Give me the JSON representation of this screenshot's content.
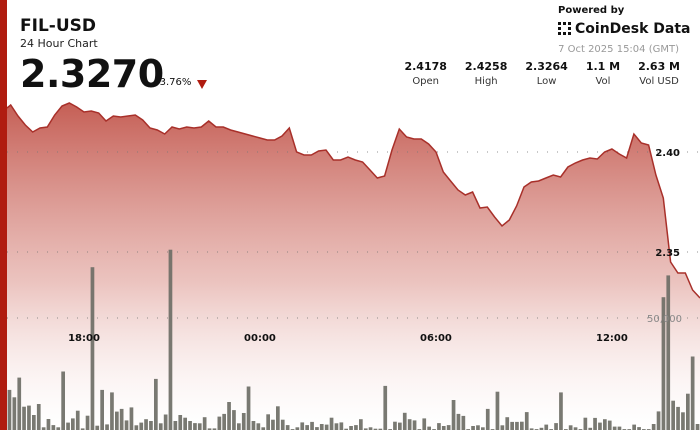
{
  "header": {
    "symbol": "FIL-USD",
    "subtitle": "24 Hour Chart",
    "price": "2.3270",
    "change": "-3.76%",
    "change_direction_icon": "triangle-down-icon",
    "powered_by": "Powered by",
    "brand": "CoinDesk Data",
    "timestamp": "7 Oct 2025 15:04 (GMT)"
  },
  "stats": [
    {
      "value": "2.4178",
      "label": "Open"
    },
    {
      "value": "2.4258",
      "label": "High"
    },
    {
      "value": "2.3264",
      "label": "Low"
    },
    {
      "value": "1.1 M",
      "label": "Vol"
    },
    {
      "value": "2.63 M",
      "label": "Vol USD"
    }
  ],
  "colors": {
    "accent": "#b01c10",
    "line": "#a8302a",
    "fill_top": "#c2564c",
    "volume_bar": "#6e6e66"
  },
  "chart_data": {
    "type": "area",
    "grid": true,
    "price_ticks": [
      "2.40",
      "2.35"
    ],
    "price_tick_values": [
      2.4,
      2.35
    ],
    "volume_ticks": [
      "50,000"
    ],
    "volume_tick_values": [
      50000
    ],
    "x_tick_labels": [
      "18:00",
      "00:00",
      "06:00",
      "12:00"
    ],
    "price_ylim": [
      2.3,
      2.426
    ],
    "price": {
      "x": [
        "15:30",
        "15:45",
        "16:00",
        "16:15",
        "16:30",
        "16:45",
        "17:00",
        "17:15",
        "17:30",
        "17:45",
        "18:00",
        "18:15",
        "18:30",
        "18:45",
        "19:00",
        "19:15",
        "19:30",
        "19:45",
        "20:00",
        "20:15",
        "20:30",
        "20:45",
        "21:00",
        "21:15",
        "21:30",
        "21:45",
        "22:00",
        "22:15",
        "22:30",
        "22:45",
        "23:00",
        "23:15",
        "23:30",
        "23:45",
        "00:00",
        "00:15",
        "00:30",
        "00:45",
        "01:00",
        "01:15",
        "01:30",
        "01:45",
        "02:00",
        "02:15",
        "02:30",
        "02:45",
        "03:00",
        "03:15",
        "03:30",
        "03:45",
        "04:00",
        "04:15",
        "04:30",
        "04:45",
        "05:00",
        "05:15",
        "05:30",
        "05:45",
        "06:00",
        "06:15",
        "06:30",
        "06:45",
        "07:00",
        "07:15",
        "07:30",
        "07:45",
        "08:00",
        "08:15",
        "08:30",
        "08:45",
        "09:00",
        "09:15",
        "09:30",
        "09:45",
        "10:00",
        "10:15",
        "10:30",
        "10:45",
        "11:00",
        "11:15",
        "11:30",
        "11:45",
        "12:00",
        "12:15",
        "12:30",
        "12:45",
        "13:00",
        "13:15",
        "13:30",
        "13:45",
        "14:00",
        "14:15",
        "14:30",
        "14:45",
        "15:00"
      ],
      "values": [
        2.4235,
        2.418,
        2.4135,
        2.41,
        2.412,
        2.4125,
        2.4185,
        2.423,
        2.4245,
        2.4225,
        2.42,
        2.4205,
        2.4195,
        2.4155,
        2.418,
        2.4175,
        2.418,
        2.4185,
        2.416,
        2.412,
        2.411,
        2.409,
        2.4125,
        2.4115,
        2.4125,
        2.412,
        2.4125,
        2.4155,
        2.4125,
        2.4125,
        2.411,
        2.41,
        2.409,
        2.408,
        2.407,
        2.406,
        2.406,
        2.408,
        2.412,
        2.4,
        2.3985,
        2.3985,
        2.4005,
        2.401,
        2.396,
        2.396,
        2.3975,
        2.396,
        2.395,
        2.391,
        2.387,
        2.388,
        2.401,
        2.4115,
        2.4075,
        2.4065,
        2.4065,
        2.404,
        2.4,
        2.39,
        2.3855,
        2.381,
        2.3785,
        2.38,
        2.372,
        2.3725,
        2.3675,
        2.363,
        2.366,
        2.373,
        2.3825,
        2.385,
        2.3855,
        2.387,
        2.3885,
        2.3875,
        2.3925,
        2.3945,
        2.396,
        2.397,
        2.3965,
        2.4,
        2.4015,
        2.399,
        2.397,
        2.409,
        2.4045,
        2.4035,
        2.3885,
        2.377,
        2.345,
        2.3395,
        2.3395,
        2.331,
        2.327
      ]
    },
    "volume": {
      "values": [
        17900,
        14600,
        23400,
        10400,
        10900,
        6700,
        11600,
        1200,
        4900,
        2200,
        1200,
        26100,
        3300,
        5200,
        8600,
        700,
        6400,
        72700,
        1900,
        17900,
        2500,
        16800,
        8200,
        9400,
        4300,
        10100,
        2100,
        3300,
        4800,
        4000,
        22800,
        3000,
        6900,
        80500,
        4000,
        6700,
        5500,
        4000,
        3100,
        3000,
        5700,
        700,
        700,
        6000,
        7200,
        12500,
        8900,
        3000,
        7600,
        19400,
        4000,
        3000,
        1200,
        7000,
        4600,
        10600,
        4600,
        2200,
        400,
        1200,
        3400,
        2200,
        3600,
        1300,
        2700,
        2400,
        5500,
        3000,
        3400,
        600,
        1800,
        2200,
        4800,
        700,
        1200,
        600,
        600,
        19700,
        400,
        3700,
        3300,
        7700,
        4800,
        4300,
        400,
        5200,
        1500,
        400,
        3100,
        1800,
        2200,
        13400,
        7200,
        6300,
        400,
        1800,
        2100,
        1200,
        9400,
        400,
        17100,
        2100,
        5700,
        3600,
        3600,
        3700,
        8000,
        700,
        400,
        1000,
        2400,
        400,
        3100,
        16800,
        400,
        2100,
        1200,
        400,
        5500,
        1000,
        5400,
        3300,
        4800,
        4200,
        1500,
        1500,
        400,
        400,
        2400,
        1300,
        400,
        400,
        2700,
        8300,
        59300,
        69000,
        13100,
        10300,
        7900,
        16200,
        32800,
        2700
      ]
    }
  }
}
